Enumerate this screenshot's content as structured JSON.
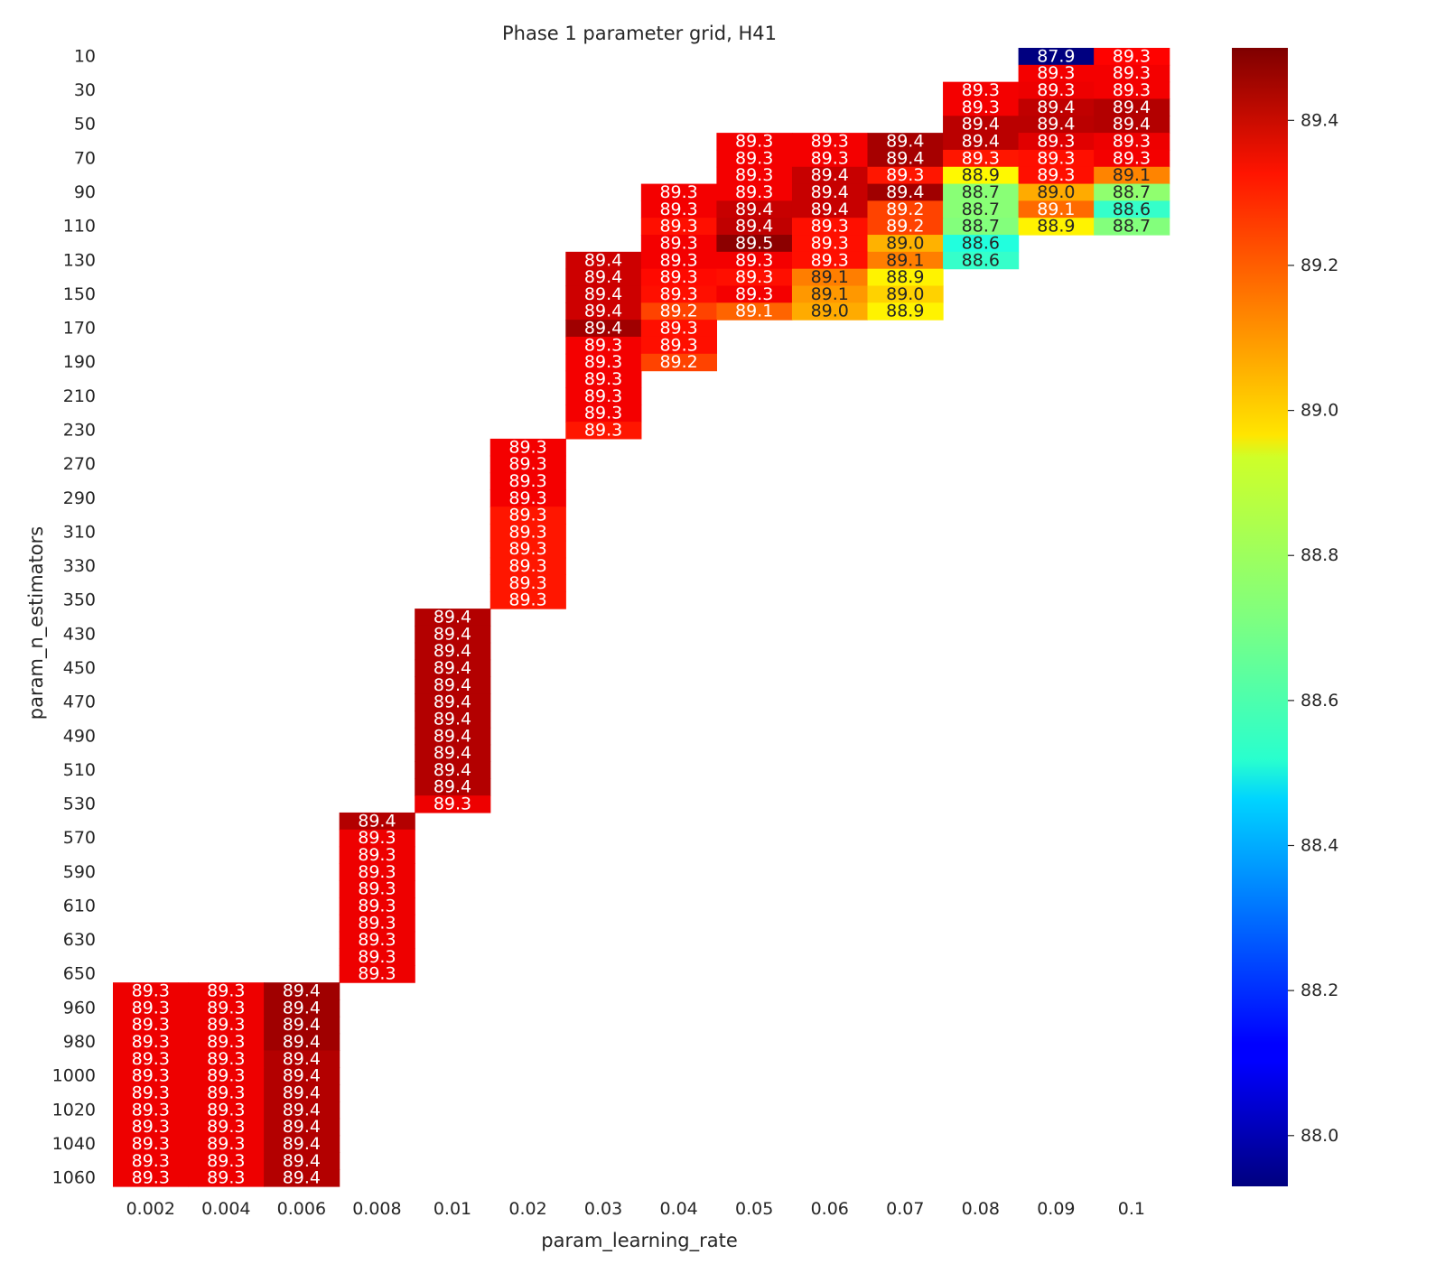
{
  "chart_data": {
    "type": "heatmap",
    "title": "Phase 1 parameter grid, H41",
    "xlabel": "param_learning_rate",
    "ylabel": "param_n_estimators",
    "colormap": "jet",
    "vmin": 87.93,
    "vmax": 89.5,
    "x_categories": [
      "0.002",
      "0.004",
      "0.006",
      "0.008",
      "0.01",
      "0.02",
      "0.03",
      "0.04",
      "0.05",
      "0.06",
      "0.07",
      "0.08",
      "0.09",
      "0.1"
    ],
    "y_rows": [
      "10",
      "20",
      "30",
      "40",
      "50",
      "60",
      "70",
      "80",
      "90",
      "100",
      "110",
      "120",
      "130",
      "140",
      "150",
      "160",
      "170",
      "180",
      "190",
      "200",
      "210",
      "220",
      "230",
      "260",
      "270",
      "280",
      "290",
      "300",
      "310",
      "320",
      "330",
      "340",
      "350",
      "420",
      "430",
      "440",
      "450",
      "460",
      "470",
      "480",
      "490",
      "500",
      "510",
      "520",
      "530",
      "560",
      "570",
      "580",
      "590",
      "600",
      "610",
      "620",
      "630",
      "640",
      "650",
      "950",
      "960",
      "970",
      "980",
      "990",
      "1000",
      "1010",
      "1020",
      "1030",
      "1040",
      "1050",
      "1060"
    ],
    "y_tick_labels": [
      "10",
      "30",
      "50",
      "70",
      "90",
      "110",
      "130",
      "150",
      "170",
      "190",
      "210",
      "230",
      "270",
      "290",
      "310",
      "330",
      "350",
      "430",
      "450",
      "470",
      "490",
      "510",
      "530",
      "570",
      "590",
      "610",
      "630",
      "650",
      "960",
      "980",
      "1000",
      "1020",
      "1040",
      "1060"
    ],
    "colorbar_ticks": [
      88.0,
      88.2,
      88.4,
      88.6,
      88.8,
      89.0,
      89.2,
      89.4
    ],
    "cells": [
      {
        "x": "0.09",
        "y": "10",
        "value": 87.93,
        "label": "87.9"
      },
      {
        "x": "0.1",
        "y": "10",
        "value": 89.3,
        "label": "89.3"
      },
      {
        "x": "0.09",
        "y": "20",
        "value": 89.32,
        "label": "89.3"
      },
      {
        "x": "0.1",
        "y": "20",
        "value": 89.32,
        "label": "89.3"
      },
      {
        "x": "0.08",
        "y": "30",
        "value": 89.32,
        "label": "89.3"
      },
      {
        "x": "0.09",
        "y": "30",
        "value": 89.33,
        "label": "89.3"
      },
      {
        "x": "0.1",
        "y": "30",
        "value": 89.32,
        "label": "89.3"
      },
      {
        "x": "0.08",
        "y": "40",
        "value": 89.32,
        "label": "89.3"
      },
      {
        "x": "0.09",
        "y": "40",
        "value": 89.4,
        "label": "89.4"
      },
      {
        "x": "0.1",
        "y": "40",
        "value": 89.42,
        "label": "89.4"
      },
      {
        "x": "0.08",
        "y": "50",
        "value": 89.41,
        "label": "89.4"
      },
      {
        "x": "0.09",
        "y": "50",
        "value": 89.41,
        "label": "89.4"
      },
      {
        "x": "0.1",
        "y": "50",
        "value": 89.42,
        "label": "89.4"
      },
      {
        "x": "0.05",
        "y": "60",
        "value": 89.32,
        "label": "89.3"
      },
      {
        "x": "0.06",
        "y": "60",
        "value": 89.32,
        "label": "89.3"
      },
      {
        "x": "0.07",
        "y": "60",
        "value": 89.44,
        "label": "89.4"
      },
      {
        "x": "0.08",
        "y": "60",
        "value": 89.41,
        "label": "89.4"
      },
      {
        "x": "0.09",
        "y": "60",
        "value": 89.35,
        "label": "89.3"
      },
      {
        "x": "0.1",
        "y": "60",
        "value": 89.33,
        "label": "89.3"
      },
      {
        "x": "0.05",
        "y": "70",
        "value": 89.32,
        "label": "89.3"
      },
      {
        "x": "0.06",
        "y": "70",
        "value": 89.32,
        "label": "89.3"
      },
      {
        "x": "0.07",
        "y": "70",
        "value": 89.44,
        "label": "89.4"
      },
      {
        "x": "0.08",
        "y": "70",
        "value": 89.27,
        "label": "89.3"
      },
      {
        "x": "0.09",
        "y": "70",
        "value": 89.28,
        "label": "89.3"
      },
      {
        "x": "0.1",
        "y": "70",
        "value": 89.32,
        "label": "89.3"
      },
      {
        "x": "0.05",
        "y": "80",
        "value": 89.32,
        "label": "89.3"
      },
      {
        "x": "0.06",
        "y": "80",
        "value": 89.39,
        "label": "89.4"
      },
      {
        "x": "0.07",
        "y": "80",
        "value": 89.27,
        "label": "89.3"
      },
      {
        "x": "0.08",
        "y": "80",
        "value": 88.92,
        "label": "88.9"
      },
      {
        "x": "0.09",
        "y": "80",
        "value": 89.28,
        "label": "89.3"
      },
      {
        "x": "0.1",
        "y": "80",
        "value": 89.1,
        "label": "89.1"
      },
      {
        "x": "0.04",
        "y": "90",
        "value": 89.32,
        "label": "89.3"
      },
      {
        "x": "0.05",
        "y": "90",
        "value": 89.32,
        "label": "89.3"
      },
      {
        "x": "0.06",
        "y": "90",
        "value": 89.39,
        "label": "89.4"
      },
      {
        "x": "0.07",
        "y": "90",
        "value": 89.45,
        "label": "89.4"
      },
      {
        "x": "0.08",
        "y": "90",
        "value": 88.73,
        "label": "88.7"
      },
      {
        "x": "0.09",
        "y": "90",
        "value": 89.04,
        "label": "89.0"
      },
      {
        "x": "0.1",
        "y": "90",
        "value": 88.74,
        "label": "88.7"
      },
      {
        "x": "0.04",
        "y": "100",
        "value": 89.32,
        "label": "89.3"
      },
      {
        "x": "0.05",
        "y": "100",
        "value": 89.39,
        "label": "89.4"
      },
      {
        "x": "0.06",
        "y": "100",
        "value": 89.39,
        "label": "89.4"
      },
      {
        "x": "0.07",
        "y": "100",
        "value": 89.2,
        "label": "89.2"
      },
      {
        "x": "0.08",
        "y": "100",
        "value": 88.73,
        "label": "88.7"
      },
      {
        "x": "0.09",
        "y": "100",
        "value": 89.14,
        "label": "89.1"
      },
      {
        "x": "0.1",
        "y": "100",
        "value": 88.6,
        "label": "88.6"
      },
      {
        "x": "0.04",
        "y": "110",
        "value": 89.28,
        "label": "89.3"
      },
      {
        "x": "0.05",
        "y": "110",
        "value": 89.4,
        "label": "89.4"
      },
      {
        "x": "0.06",
        "y": "110",
        "value": 89.28,
        "label": "89.3"
      },
      {
        "x": "0.07",
        "y": "110",
        "value": 89.2,
        "label": "89.2"
      },
      {
        "x": "0.08",
        "y": "110",
        "value": 88.72,
        "label": "88.7"
      },
      {
        "x": "0.09",
        "y": "110",
        "value": 88.93,
        "label": "88.9"
      },
      {
        "x": "0.1",
        "y": "110",
        "value": 88.72,
        "label": "88.7"
      },
      {
        "x": "0.04",
        "y": "120",
        "value": 89.32,
        "label": "89.3"
      },
      {
        "x": "0.05",
        "y": "120",
        "value": 89.48,
        "label": "89.5"
      },
      {
        "x": "0.06",
        "y": "120",
        "value": 89.28,
        "label": "89.3"
      },
      {
        "x": "0.07",
        "y": "120",
        "value": 89.03,
        "label": "89.0"
      },
      {
        "x": "0.08",
        "y": "120",
        "value": 88.57,
        "label": "88.6"
      },
      {
        "x": "0.03",
        "y": "130",
        "value": 89.38,
        "label": "89.4"
      },
      {
        "x": "0.04",
        "y": "130",
        "value": 89.32,
        "label": "89.3"
      },
      {
        "x": "0.05",
        "y": "130",
        "value": 89.32,
        "label": "89.3"
      },
      {
        "x": "0.06",
        "y": "130",
        "value": 89.28,
        "label": "89.3"
      },
      {
        "x": "0.07",
        "y": "130",
        "value": 89.11,
        "label": "89.1"
      },
      {
        "x": "0.08",
        "y": "130",
        "value": 88.6,
        "label": "88.6"
      },
      {
        "x": "0.03",
        "y": "140",
        "value": 89.38,
        "label": "89.4"
      },
      {
        "x": "0.04",
        "y": "140",
        "value": 89.29,
        "label": "89.3"
      },
      {
        "x": "0.05",
        "y": "140",
        "value": 89.28,
        "label": "89.3"
      },
      {
        "x": "0.06",
        "y": "140",
        "value": 89.11,
        "label": "89.1"
      },
      {
        "x": "0.07",
        "y": "140",
        "value": 88.93,
        "label": "88.9"
      },
      {
        "x": "0.03",
        "y": "150",
        "value": 89.38,
        "label": "89.4"
      },
      {
        "x": "0.04",
        "y": "150",
        "value": 89.28,
        "label": "89.3"
      },
      {
        "x": "0.05",
        "y": "150",
        "value": 89.32,
        "label": "89.3"
      },
      {
        "x": "0.06",
        "y": "150",
        "value": 89.07,
        "label": "89.1"
      },
      {
        "x": "0.07",
        "y": "150",
        "value": 88.98,
        "label": "89.0"
      },
      {
        "x": "0.03",
        "y": "160",
        "value": 89.38,
        "label": "89.4"
      },
      {
        "x": "0.04",
        "y": "160",
        "value": 89.2,
        "label": "89.2"
      },
      {
        "x": "0.05",
        "y": "160",
        "value": 89.15,
        "label": "89.1"
      },
      {
        "x": "0.06",
        "y": "160",
        "value": 89.04,
        "label": "89.0"
      },
      {
        "x": "0.07",
        "y": "160",
        "value": 88.93,
        "label": "88.9"
      },
      {
        "x": "0.03",
        "y": "170",
        "value": 89.45,
        "label": "89.4"
      },
      {
        "x": "0.04",
        "y": "170",
        "value": 89.28,
        "label": "89.3"
      },
      {
        "x": "0.03",
        "y": "180",
        "value": 89.32,
        "label": "89.3"
      },
      {
        "x": "0.04",
        "y": "180",
        "value": 89.28,
        "label": "89.3"
      },
      {
        "x": "0.03",
        "y": "190",
        "value": 89.32,
        "label": "89.3"
      },
      {
        "x": "0.04",
        "y": "190",
        "value": 89.2,
        "label": "89.2"
      },
      {
        "x": "0.03",
        "y": "200",
        "value": 89.32,
        "label": "89.3"
      },
      {
        "x": "0.03",
        "y": "210",
        "value": 89.32,
        "label": "89.3"
      },
      {
        "x": "0.03",
        "y": "220",
        "value": 89.32,
        "label": "89.3"
      },
      {
        "x": "0.03",
        "y": "230",
        "value": 89.27,
        "label": "89.3"
      },
      {
        "x": "0.02",
        "y": "260",
        "value": 89.32,
        "label": "89.3"
      },
      {
        "x": "0.02",
        "y": "270",
        "value": 89.32,
        "label": "89.3"
      },
      {
        "x": "0.02",
        "y": "280",
        "value": 89.32,
        "label": "89.3"
      },
      {
        "x": "0.02",
        "y": "290",
        "value": 89.32,
        "label": "89.3"
      },
      {
        "x": "0.02",
        "y": "300",
        "value": 89.27,
        "label": "89.3"
      },
      {
        "x": "0.02",
        "y": "310",
        "value": 89.27,
        "label": "89.3"
      },
      {
        "x": "0.02",
        "y": "320",
        "value": 89.27,
        "label": "89.3"
      },
      {
        "x": "0.02",
        "y": "330",
        "value": 89.27,
        "label": "89.3"
      },
      {
        "x": "0.02",
        "y": "340",
        "value": 89.27,
        "label": "89.3"
      },
      {
        "x": "0.02",
        "y": "350",
        "value": 89.27,
        "label": "89.3"
      },
      {
        "x": "0.01",
        "y": "420",
        "value": 89.42,
        "label": "89.4"
      },
      {
        "x": "0.01",
        "y": "430",
        "value": 89.42,
        "label": "89.4"
      },
      {
        "x": "0.01",
        "y": "440",
        "value": 89.42,
        "label": "89.4"
      },
      {
        "x": "0.01",
        "y": "450",
        "value": 89.42,
        "label": "89.4"
      },
      {
        "x": "0.01",
        "y": "460",
        "value": 89.42,
        "label": "89.4"
      },
      {
        "x": "0.01",
        "y": "470",
        "value": 89.42,
        "label": "89.4"
      },
      {
        "x": "0.01",
        "y": "480",
        "value": 89.42,
        "label": "89.4"
      },
      {
        "x": "0.01",
        "y": "490",
        "value": 89.42,
        "label": "89.4"
      },
      {
        "x": "0.01",
        "y": "500",
        "value": 89.42,
        "label": "89.4"
      },
      {
        "x": "0.01",
        "y": "510",
        "value": 89.42,
        "label": "89.4"
      },
      {
        "x": "0.01",
        "y": "520",
        "value": 89.42,
        "label": "89.4"
      },
      {
        "x": "0.01",
        "y": "530",
        "value": 89.33,
        "label": "89.3"
      },
      {
        "x": "0.008",
        "y": "560",
        "value": 89.42,
        "label": "89.4"
      },
      {
        "x": "0.008",
        "y": "570",
        "value": 89.33,
        "label": "89.3"
      },
      {
        "x": "0.008",
        "y": "580",
        "value": 89.33,
        "label": "89.3"
      },
      {
        "x": "0.008",
        "y": "590",
        "value": 89.33,
        "label": "89.3"
      },
      {
        "x": "0.008",
        "y": "600",
        "value": 89.33,
        "label": "89.3"
      },
      {
        "x": "0.008",
        "y": "610",
        "value": 89.33,
        "label": "89.3"
      },
      {
        "x": "0.008",
        "y": "620",
        "value": 89.33,
        "label": "89.3"
      },
      {
        "x": "0.008",
        "y": "630",
        "value": 89.33,
        "label": "89.3"
      },
      {
        "x": "0.008",
        "y": "640",
        "value": 89.33,
        "label": "89.3"
      },
      {
        "x": "0.008",
        "y": "650",
        "value": 89.33,
        "label": "89.3"
      },
      {
        "x": "0.002",
        "y": "950",
        "value": 89.33,
        "label": "89.3"
      },
      {
        "x": "0.004",
        "y": "950",
        "value": 89.33,
        "label": "89.3"
      },
      {
        "x": "0.006",
        "y": "950",
        "value": 89.45,
        "label": "89.4"
      },
      {
        "x": "0.002",
        "y": "960",
        "value": 89.33,
        "label": "89.3"
      },
      {
        "x": "0.004",
        "y": "960",
        "value": 89.33,
        "label": "89.3"
      },
      {
        "x": "0.006",
        "y": "960",
        "value": 89.45,
        "label": "89.4"
      },
      {
        "x": "0.002",
        "y": "970",
        "value": 89.33,
        "label": "89.3"
      },
      {
        "x": "0.004",
        "y": "970",
        "value": 89.33,
        "label": "89.3"
      },
      {
        "x": "0.006",
        "y": "970",
        "value": 89.45,
        "label": "89.4"
      },
      {
        "x": "0.002",
        "y": "980",
        "value": 89.33,
        "label": "89.3"
      },
      {
        "x": "0.004",
        "y": "980",
        "value": 89.33,
        "label": "89.3"
      },
      {
        "x": "0.006",
        "y": "980",
        "value": 89.45,
        "label": "89.4"
      },
      {
        "x": "0.002",
        "y": "990",
        "value": 89.33,
        "label": "89.3"
      },
      {
        "x": "0.004",
        "y": "990",
        "value": 89.33,
        "label": "89.3"
      },
      {
        "x": "0.006",
        "y": "990",
        "value": 89.42,
        "label": "89.4"
      },
      {
        "x": "0.002",
        "y": "1000",
        "value": 89.33,
        "label": "89.3"
      },
      {
        "x": "0.004",
        "y": "1000",
        "value": 89.33,
        "label": "89.3"
      },
      {
        "x": "0.006",
        "y": "1000",
        "value": 89.42,
        "label": "89.4"
      },
      {
        "x": "0.002",
        "y": "1010",
        "value": 89.33,
        "label": "89.3"
      },
      {
        "x": "0.004",
        "y": "1010",
        "value": 89.33,
        "label": "89.3"
      },
      {
        "x": "0.006",
        "y": "1010",
        "value": 89.42,
        "label": "89.4"
      },
      {
        "x": "0.002",
        "y": "1020",
        "value": 89.33,
        "label": "89.3"
      },
      {
        "x": "0.004",
        "y": "1020",
        "value": 89.33,
        "label": "89.3"
      },
      {
        "x": "0.006",
        "y": "1020",
        "value": 89.42,
        "label": "89.4"
      },
      {
        "x": "0.002",
        "y": "1030",
        "value": 89.33,
        "label": "89.3"
      },
      {
        "x": "0.004",
        "y": "1030",
        "value": 89.33,
        "label": "89.3"
      },
      {
        "x": "0.006",
        "y": "1030",
        "value": 89.42,
        "label": "89.4"
      },
      {
        "x": "0.002",
        "y": "1040",
        "value": 89.33,
        "label": "89.3"
      },
      {
        "x": "0.004",
        "y": "1040",
        "value": 89.33,
        "label": "89.3"
      },
      {
        "x": "0.006",
        "y": "1040",
        "value": 89.42,
        "label": "89.4"
      },
      {
        "x": "0.002",
        "y": "1050",
        "value": 89.33,
        "label": "89.3"
      },
      {
        "x": "0.004",
        "y": "1050",
        "value": 89.33,
        "label": "89.3"
      },
      {
        "x": "0.006",
        "y": "1050",
        "value": 89.42,
        "label": "89.4"
      },
      {
        "x": "0.002",
        "y": "1060",
        "value": 89.33,
        "label": "89.3"
      },
      {
        "x": "0.004",
        "y": "1060",
        "value": 89.33,
        "label": "89.3"
      },
      {
        "x": "0.006",
        "y": "1060",
        "value": 89.42,
        "label": "89.4"
      }
    ]
  }
}
